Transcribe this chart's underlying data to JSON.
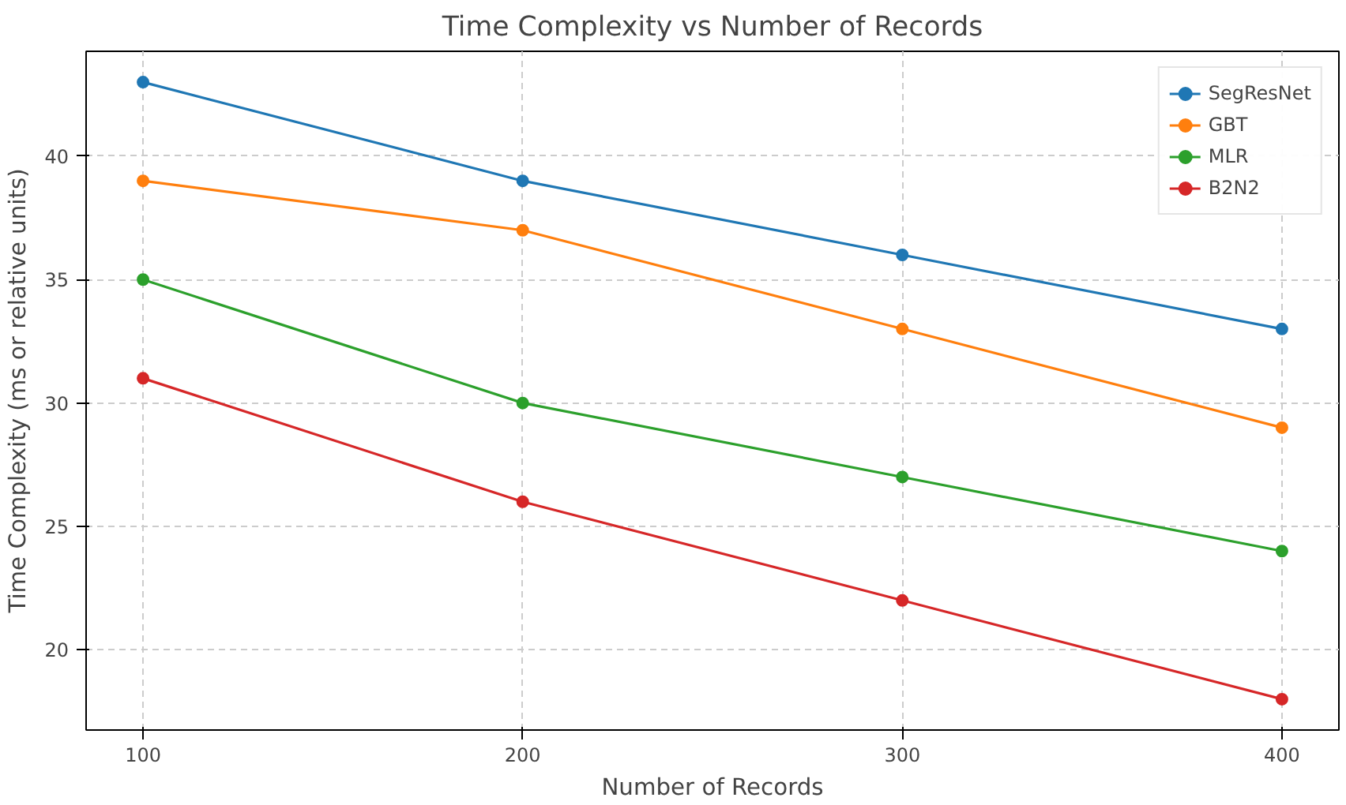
{
  "chart_data": {
    "type": "line",
    "title": "Time Complexity vs Number of Records",
    "xlabel": "Number of Records",
    "ylabel": "Time Complexity (ms or relative units)",
    "x": [
      100,
      200,
      300,
      400
    ],
    "series": [
      {
        "name": "SegResNet",
        "color": "#1f77b4",
        "values": [
          43,
          39,
          36,
          33
        ]
      },
      {
        "name": "GBT",
        "color": "#ff7f0e",
        "values": [
          39,
          37,
          33,
          29
        ]
      },
      {
        "name": "MLR",
        "color": "#2ca02c",
        "values": [
          35,
          30,
          27,
          24
        ]
      },
      {
        "name": "B2N2",
        "color": "#d62728",
        "values": [
          31,
          26,
          22,
          18
        ]
      }
    ],
    "xlim": [
      85,
      415
    ],
    "ylim": [
      16.75,
      44.25
    ],
    "xticks": [
      100,
      200,
      300,
      400
    ],
    "yticks": [
      20,
      25,
      30,
      35,
      40
    ],
    "grid": true,
    "legend": "top right",
    "marker": "circle",
    "line_style": "solid"
  }
}
